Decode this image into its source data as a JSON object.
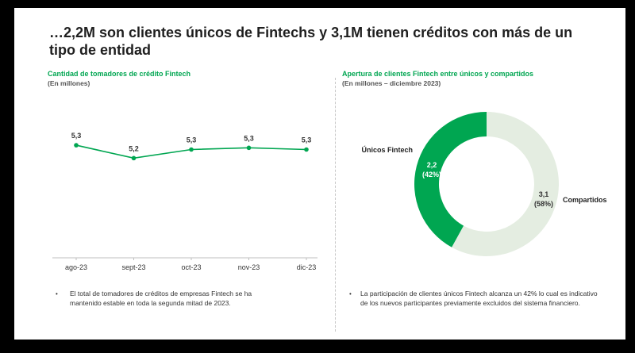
{
  "slide": {
    "title": "…2,2M son clientes únicos de Fintechs y 3,1M tienen créditos con más de un tipo de entidad"
  },
  "left_panel": {
    "title": "Cantidad de tomadores de crédito Fintech",
    "subtitle": "(En millones)",
    "note_bullet": "•",
    "note": "El total de tomadores de créditos de empresas Fintech se ha mantenido estable en toda la segunda mitad de 2023."
  },
  "right_panel": {
    "title": "Apertura de clientes Fintech entre únicos y compartidos",
    "subtitle": "(En millones – diciembre 2023)",
    "note_bullet": "•",
    "note": "La participación de clientes únicos Fintech alcanza un 42% lo cual es indicativo de los nuevos participantes previamente excluidos del sistema financiero."
  },
  "colors": {
    "accent": "#00a651",
    "line": "#00a651",
    "donut_unicos": "#00a651",
    "donut_compartidos": "#e4ede1"
  },
  "chart_data": [
    {
      "type": "line",
      "title": "Cantidad de tomadores de crédito Fintech",
      "subtitle": "(En millones)",
      "categories": [
        "ago-23",
        "sept-23",
        "oct-23",
        "nov-23",
        "dic-23"
      ],
      "values": [
        5.3,
        5.2,
        5.3,
        5.3,
        5.3
      ],
      "value_labels": [
        "5,3",
        "5,2",
        "5,3",
        "5,3",
        "5,3"
      ],
      "plot_values": [
        5.31,
        5.16,
        5.26,
        5.28,
        5.26
      ],
      "ylim": [
        4.0,
        5.8
      ],
      "grid": false
    },
    {
      "type": "pie",
      "variant": "donut",
      "title": "Apertura de clientes Fintech entre únicos y compartidos",
      "subtitle": "(En millones – diciembre 2023)",
      "slices": [
        {
          "name": "Únicos Fintech",
          "value": 2.2,
          "value_label": "2,2",
          "percent_label": "(42%)",
          "percent": 42
        },
        {
          "name": "Compartidos",
          "value": 3.1,
          "value_label": "3,1",
          "percent_label": "(58%)",
          "percent": 58
        }
      ]
    }
  ]
}
